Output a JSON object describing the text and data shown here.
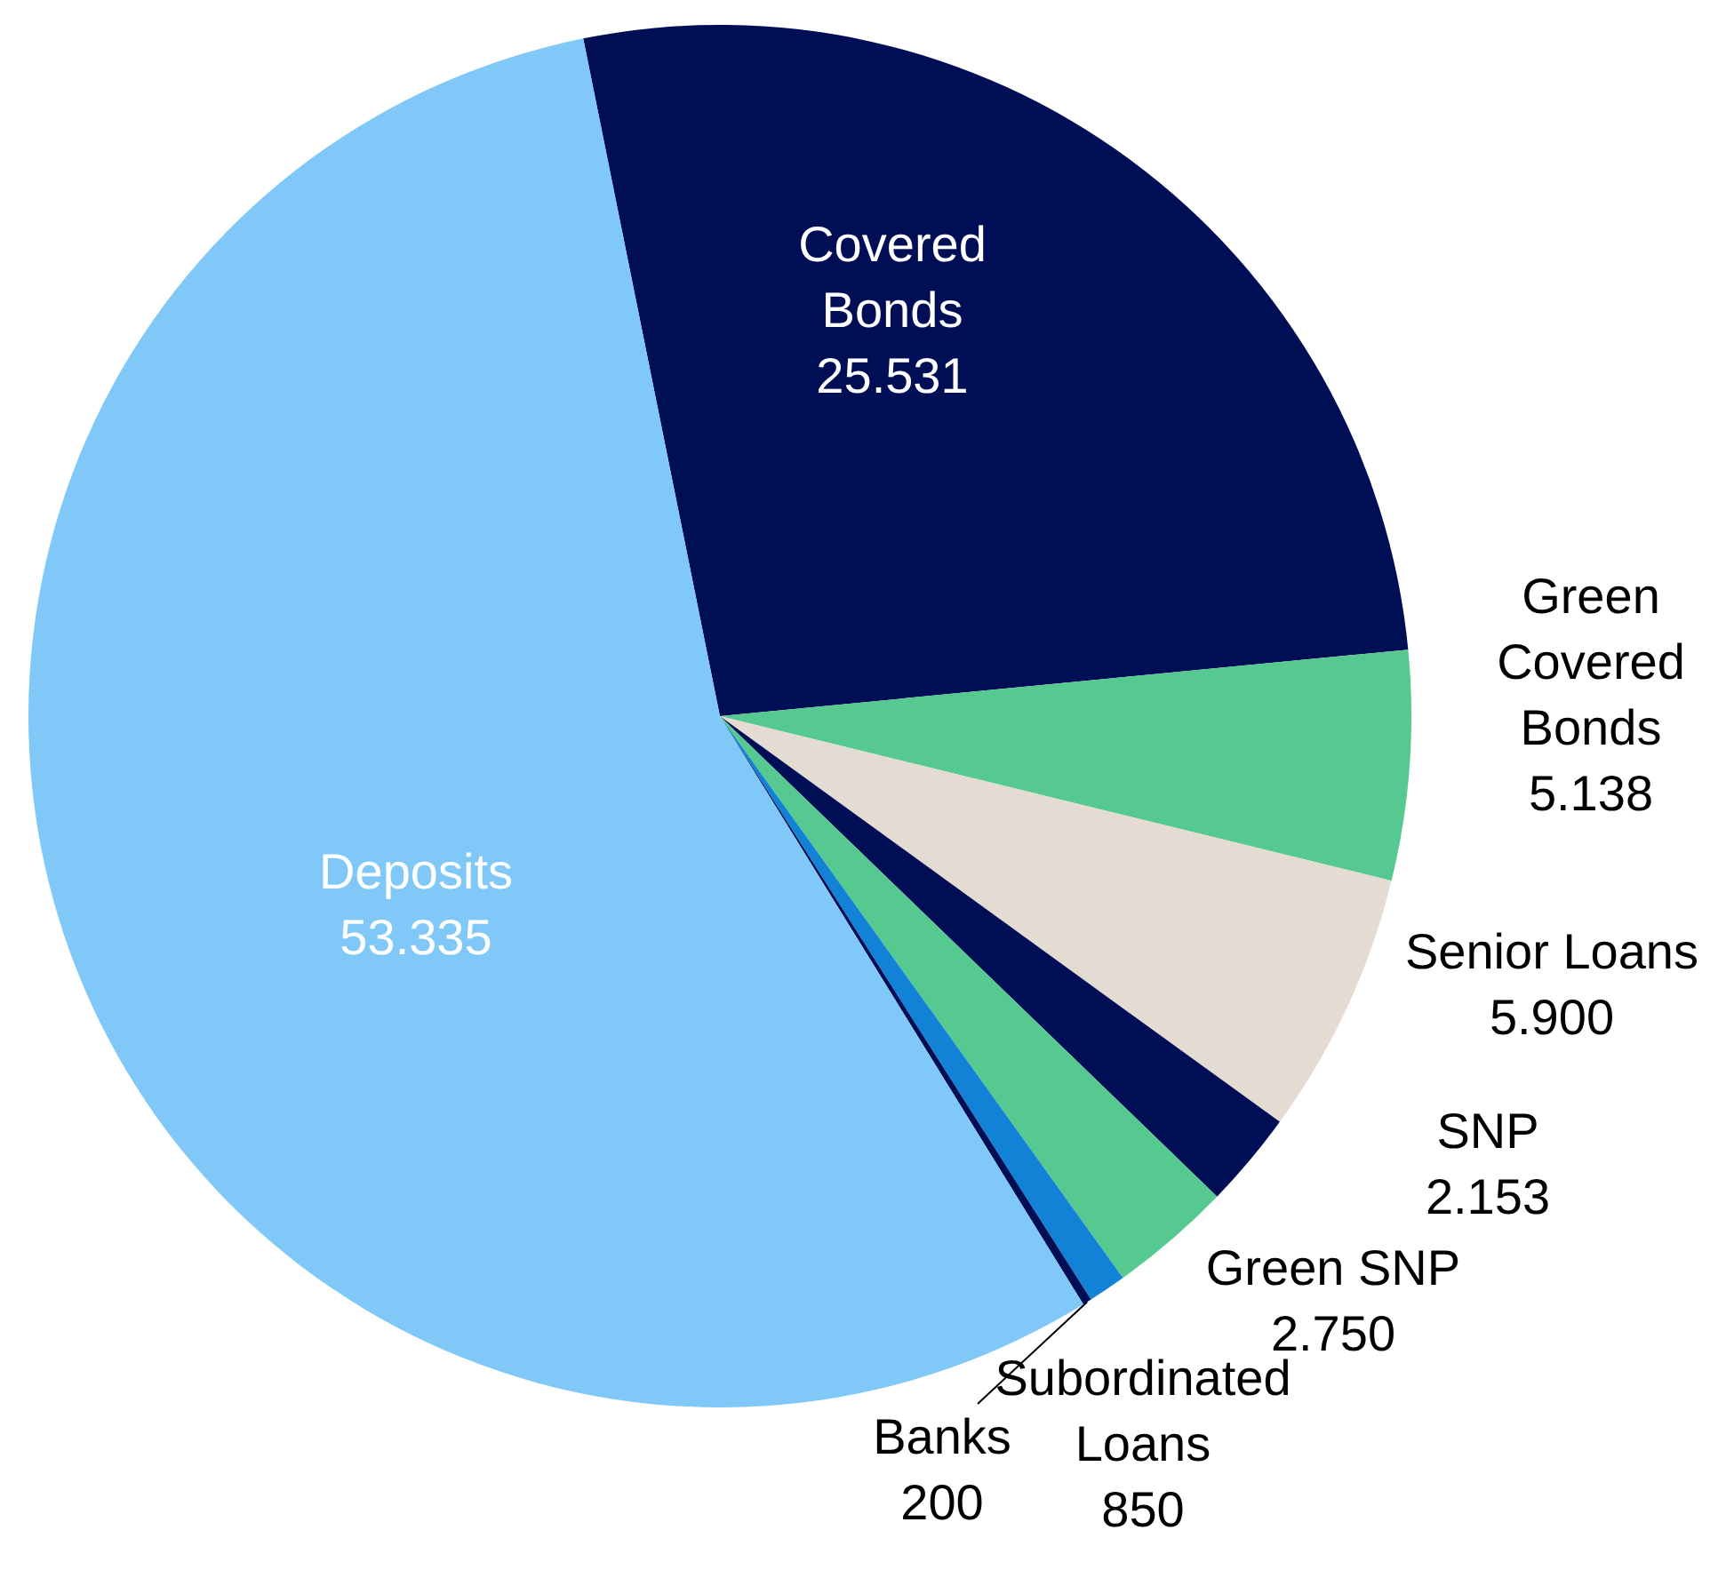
{
  "chart_data": {
    "type": "pie",
    "categories": [
      "Covered Bonds",
      "Green Covered Bonds",
      "Senior Loans",
      "SNP",
      "Green SNP",
      "Subordinated Loans",
      "Banks",
      "Deposits"
    ],
    "values": [
      25531,
      5138,
      5900,
      2153,
      2750,
      850,
      200,
      53335
    ],
    "value_labels": [
      "25.531",
      "5.138",
      "5.900",
      "2.153",
      "2.750",
      "850",
      "200",
      "53.335"
    ],
    "colors": [
      "#000f55",
      "#55c98f",
      "#e4dbd2",
      "#000f55",
      "#55c98f",
      "#1282d6",
      "#000f55",
      "#80c8f8"
    ]
  }
}
